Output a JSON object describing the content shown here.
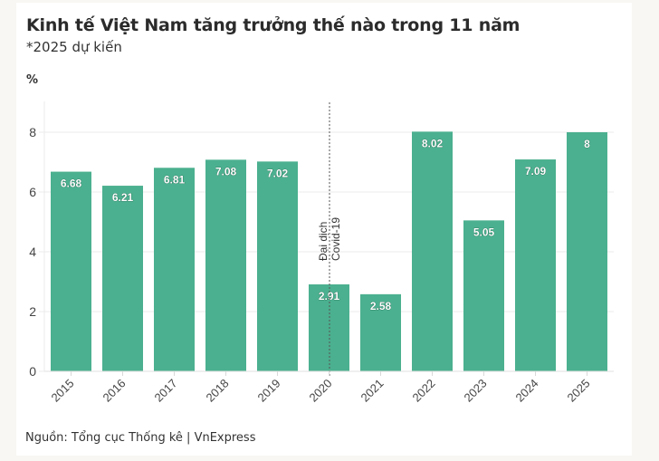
{
  "header": {
    "title": "Kinh tế Việt Nam tăng trưởng thế nào trong 11 năm",
    "subtitle": "*2025 dự kiến",
    "unit": "%"
  },
  "footer": {
    "source": "Nguồn: Tổng cục Thống kê | VnExpress"
  },
  "colors": {
    "bar": "#4bb08f",
    "grid": "#ebebeb",
    "background": "#f8f7f3",
    "card": "#ffffff"
  },
  "chart_data": {
    "type": "bar",
    "title": "Kinh tế Việt Nam tăng trưởng thế nào trong 11 năm",
    "subtitle": "*2025 dự kiến",
    "xlabel": "",
    "ylabel": "%",
    "categories": [
      "2015",
      "2016",
      "2017",
      "2018",
      "2019",
      "2020",
      "2021",
      "2022",
      "2023",
      "2024",
      "2025"
    ],
    "values": [
      6.68,
      6.21,
      6.81,
      7.08,
      7.02,
      2.91,
      2.58,
      8.02,
      5.05,
      7.09,
      8
    ],
    "value_labels": [
      "6.68",
      "6.21",
      "6.81",
      "7.08",
      "7.02",
      "2.91",
      "2.58",
      "8.02",
      "5.05",
      "7.09",
      "8"
    ],
    "ylim": [
      0,
      9
    ],
    "yticks": [
      0,
      2,
      4,
      6,
      8
    ],
    "grid": true,
    "legend": null,
    "annotations": [
      {
        "x": "2020",
        "type": "vertical-dashed-line",
        "lines": [
          "Đại dịch",
          "Covid-19"
        ]
      }
    ],
    "source": "Nguồn: Tổng cục Thống kê | VnExpress"
  }
}
